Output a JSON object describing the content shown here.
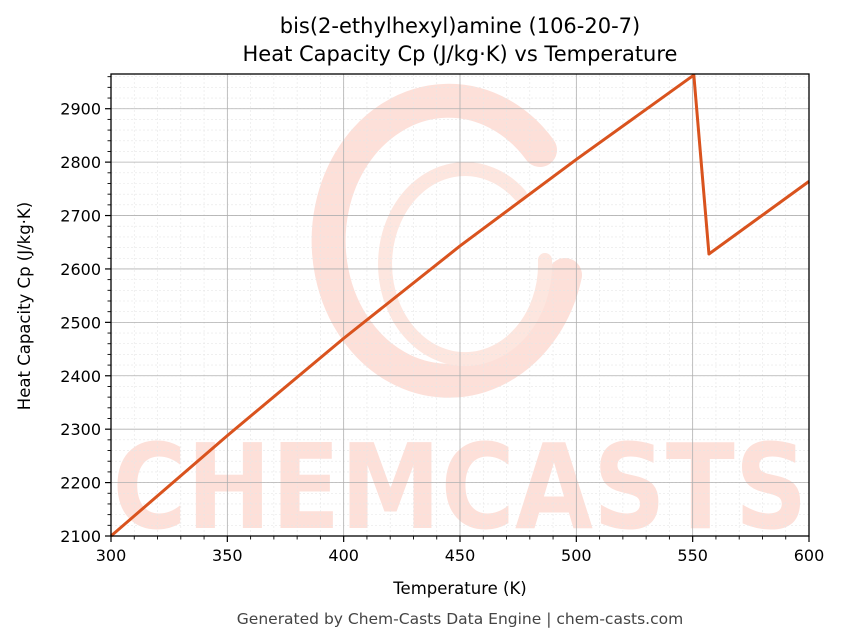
{
  "chart_data": {
    "type": "line",
    "title": "bis(2-ethylhexyl)amine (106-20-7)",
    "subtitle": "Heat Capacity Cp (J/kg·K) vs Temperature",
    "xlabel": "Temperature (K)",
    "ylabel": "Heat Capacity Cp (J/kg·K)",
    "xlim": [
      300,
      600
    ],
    "ylim": [
      2100,
      2965
    ],
    "xticks": [
      300,
      350,
      400,
      450,
      500,
      550,
      600
    ],
    "yticks": [
      2100,
      2200,
      2300,
      2400,
      2500,
      2600,
      2700,
      2800,
      2900
    ],
    "grid": true,
    "legend": "none",
    "series": [
      {
        "color": "#d9531e",
        "x": [
          300,
          350,
          400,
          450,
          500,
          550.5,
          557,
          600
        ],
        "y": [
          2100,
          2288,
          2470,
          2643,
          2805,
          2963,
          2628,
          2764
        ]
      }
    ],
    "watermark": "CHEMCASTS",
    "footer": "Generated by Chem-Casts Data Engine | chem-casts.com"
  }
}
